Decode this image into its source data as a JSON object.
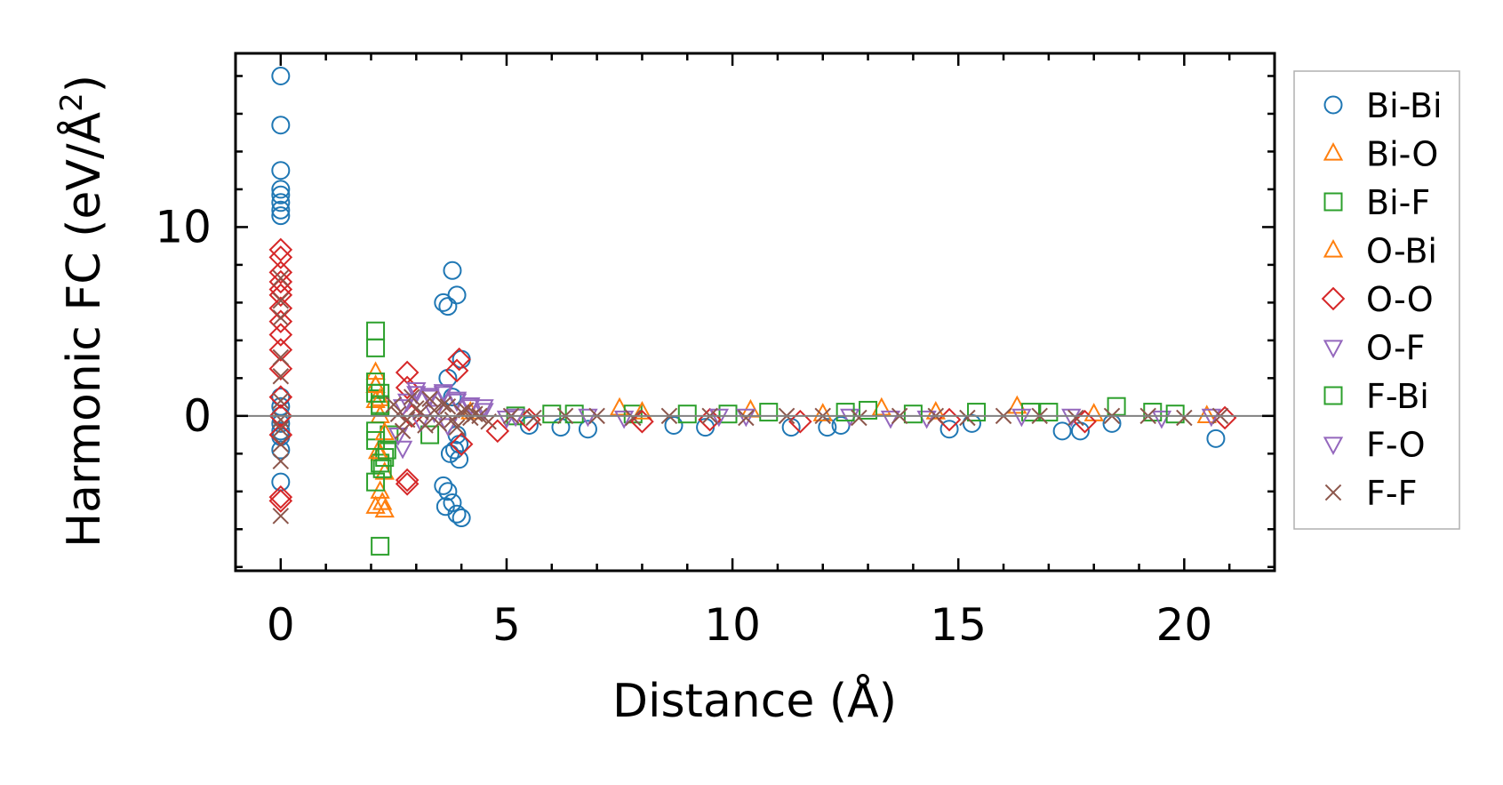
{
  "chart_data": {
    "type": "scatter",
    "title": "",
    "xlabel": "Distance (Å)",
    "ylabel_main": "Harmonic FC (eV/Å",
    "ylabel_sup": "2",
    "ylabel_end": ")",
    "xlim": [
      -1.0,
      22.0
    ],
    "ylim": [
      -8.2,
      19.2
    ],
    "xticks": [
      0,
      5,
      10,
      15,
      20
    ],
    "xtick_labels": [
      "0",
      "5",
      "10",
      "15",
      "20"
    ],
    "yticks": [
      0,
      10
    ],
    "ytick_labels": [
      "0",
      "10"
    ],
    "x_minor_step": 1,
    "y_minor_step": 2,
    "zero_line": 0,
    "grid": false,
    "legend_position": "outside-right",
    "series": [
      {
        "name": "Bi-Bi",
        "marker": "circle",
        "color": "#1f77b4",
        "x": [
          0,
          0,
          0,
          0,
          0,
          0,
          0,
          0,
          0,
          0,
          0,
          0,
          0,
          0,
          0,
          0,
          3.6,
          3.7,
          3.8,
          3.9,
          4.0,
          3.6,
          3.7,
          3.8,
          3.9,
          4.0,
          3.65,
          3.75,
          3.85,
          3.95,
          3.7,
          3.8,
          3.9,
          3.95,
          5.5,
          6.2,
          6.8,
          8.7,
          9.4,
          11.3,
          12.1,
          12.4,
          14.8,
          15.3,
          17.3,
          17.7,
          18.4,
          20.7
        ],
        "y": [
          18.0,
          15.4,
          13.0,
          12.0,
          11.7,
          11.3,
          10.9,
          10.6,
          0.5,
          0.0,
          -0.4,
          -1.1,
          -1.8,
          -3.5,
          1.0,
          -0.8,
          6.0,
          5.8,
          7.7,
          6.4,
          3.0,
          -3.7,
          -4.0,
          -4.6,
          -5.2,
          -5.4,
          -4.8,
          -2.0,
          -1.8,
          -2.3,
          2.0,
          1.0,
          -1.0,
          -1.5,
          -0.5,
          -0.6,
          -0.7,
          -0.5,
          -0.6,
          -0.6,
          -0.6,
          -0.5,
          -0.7,
          -0.4,
          -0.8,
          -0.8,
          -0.4,
          -1.2
        ]
      },
      {
        "name": "Bi-O",
        "marker": "triangle-up",
        "color": "#ff7f0e",
        "x": [
          2.1,
          2.1,
          2.1,
          2.2,
          2.2,
          2.3,
          2.2,
          2.1,
          2.3,
          7.5,
          10.4,
          13.3,
          16.3
        ],
        "y": [
          2.3,
          1.6,
          0.8,
          0.0,
          -2.0,
          -3.0,
          -4.0,
          -4.8,
          -5.0,
          0.4,
          0.3,
          0.4,
          0.5
        ]
      },
      {
        "name": "Bi-F",
        "marker": "square",
        "color": "#2ca02c",
        "x": [
          2.1,
          2.1,
          2.1,
          2.2,
          2.2,
          2.1,
          2.2,
          2.1,
          2.3,
          2.4,
          2.2,
          3.3,
          5.2,
          6.5,
          7.8,
          9.9,
          10.8,
          13.0,
          15.4,
          16.6,
          18.5,
          19.3
        ],
        "y": [
          4.5,
          3.6,
          1.8,
          1.2,
          0.5,
          -0.8,
          -2.5,
          -3.5,
          -2.2,
          -1.0,
          -6.9,
          -1.0,
          0.0,
          0.1,
          0.1,
          0.1,
          0.2,
          0.3,
          0.2,
          0.2,
          0.5,
          0.2
        ]
      },
      {
        "name": "O-Bi",
        "marker": "triangle-up",
        "color": "#ff7f0e",
        "x": [
          2.1,
          2.2,
          2.3,
          2.15,
          2.25,
          4.2,
          8.0,
          12.0,
          14.5,
          18.0,
          20.5
        ],
        "y": [
          1.6,
          0.9,
          -0.9,
          -1.9,
          -4.6,
          0.2,
          0.2,
          0.1,
          0.2,
          0.1,
          0.0
        ]
      },
      {
        "name": "O-O",
        "marker": "diamond",
        "color": "#d62728",
        "x": [
          0,
          0,
          0,
          0,
          0,
          0,
          0,
          0,
          0,
          0,
          0,
          0,
          0,
          0,
          0,
          0,
          2.8,
          2.8,
          2.8,
          2.9,
          2.8,
          3.95,
          3.9,
          4.0,
          4.8,
          5.5,
          8.0,
          9.5,
          11.5,
          14.8,
          17.8,
          20.9
        ],
        "y": [
          8.8,
          8.4,
          7.6,
          7.1,
          6.7,
          6.4,
          5.7,
          5.0,
          4.3,
          3.5,
          2.5,
          1.0,
          0.0,
          -1.0,
          -4.3,
          -4.5,
          2.3,
          -3.4,
          -3.6,
          0.0,
          1.5,
          3.0,
          2.4,
          -1.5,
          -0.8,
          -0.2,
          -0.3,
          -0.2,
          -0.3,
          -0.2,
          -0.3,
          -0.1
        ]
      },
      {
        "name": "O-F",
        "marker": "triangle-down",
        "color": "#9467bd",
        "x": [
          2.6,
          2.8,
          3.0,
          3.3,
          3.6,
          3.9,
          4.2,
          4.5,
          2.7,
          3.1,
          3.4,
          3.7,
          5.2,
          7.6,
          9.7,
          12.6,
          14.3,
          16.4,
          19.5,
          20.6
        ],
        "y": [
          -1.0,
          0.8,
          1.2,
          1.0,
          1.3,
          0.9,
          0.6,
          0.5,
          -1.7,
          -0.3,
          0.2,
          -0.5,
          0.0,
          -0.1,
          0.0,
          0.0,
          -0.1,
          0.0,
          -0.1,
          0.0
        ]
      },
      {
        "name": "F-Bi",
        "marker": "square",
        "color": "#2ca02c",
        "x": [
          2.1,
          2.2,
          2.1,
          2.25,
          2.35,
          6.0,
          9.0,
          12.5,
          14.0,
          17.0,
          19.8
        ],
        "y": [
          1.2,
          0.6,
          -1.3,
          -2.8,
          -1.8,
          0.1,
          0.1,
          0.2,
          0.1,
          0.2,
          0.1
        ]
      },
      {
        "name": "F-O",
        "marker": "triangle-down",
        "color": "#9467bd",
        "x": [
          2.7,
          3.0,
          3.3,
          3.6,
          3.9,
          4.2,
          4.5,
          5.0,
          6.8,
          10.3,
          13.5,
          17.5
        ],
        "y": [
          0.5,
          1.4,
          1.1,
          1.2,
          0.8,
          0.5,
          0.3,
          -0.1,
          0.0,
          0.0,
          -0.1,
          0.0
        ]
      },
      {
        "name": "F-F",
        "marker": "x",
        "color": "#8c564b",
        "x": [
          0,
          0,
          0,
          0,
          0,
          0,
          0,
          0,
          0,
          0,
          0,
          2.5,
          2.7,
          2.9,
          3.1,
          3.3,
          3.5,
          3.7,
          3.9,
          4.1,
          4.3,
          4.6,
          2.6,
          2.8,
          3.0,
          3.2,
          3.4,
          3.6,
          3.8,
          4.0,
          4.2,
          4.4,
          5.1,
          5.6,
          6.3,
          7.0,
          7.8,
          8.6,
          9.5,
          10.3,
          11.2,
          12.0,
          12.8,
          13.7,
          14.5,
          15.2,
          16.0,
          16.8,
          17.6,
          18.4,
          19.2,
          20.0,
          20.8
        ],
        "y": [
          7.3,
          6.1,
          5.2,
          3.1,
          2.1,
          0.8,
          -0.2,
          -0.7,
          -1.5,
          -2.4,
          -5.3,
          0.6,
          -0.8,
          1.0,
          0.2,
          0.9,
          -0.4,
          0.5,
          -0.6,
          0.3,
          0.1,
          -0.3,
          0.1,
          -0.2,
          0.4,
          -0.5,
          0.3,
          0.6,
          -0.2,
          0.2,
          -0.1,
          0.0,
          0.0,
          -0.1,
          0.0,
          0.0,
          -0.1,
          0.0,
          0.0,
          -0.1,
          0.0,
          0.0,
          -0.1,
          0.0,
          0.0,
          -0.1,
          0.0,
          0.0,
          -0.1,
          0.0,
          0.0,
          -0.1,
          0.0
        ]
      }
    ]
  }
}
